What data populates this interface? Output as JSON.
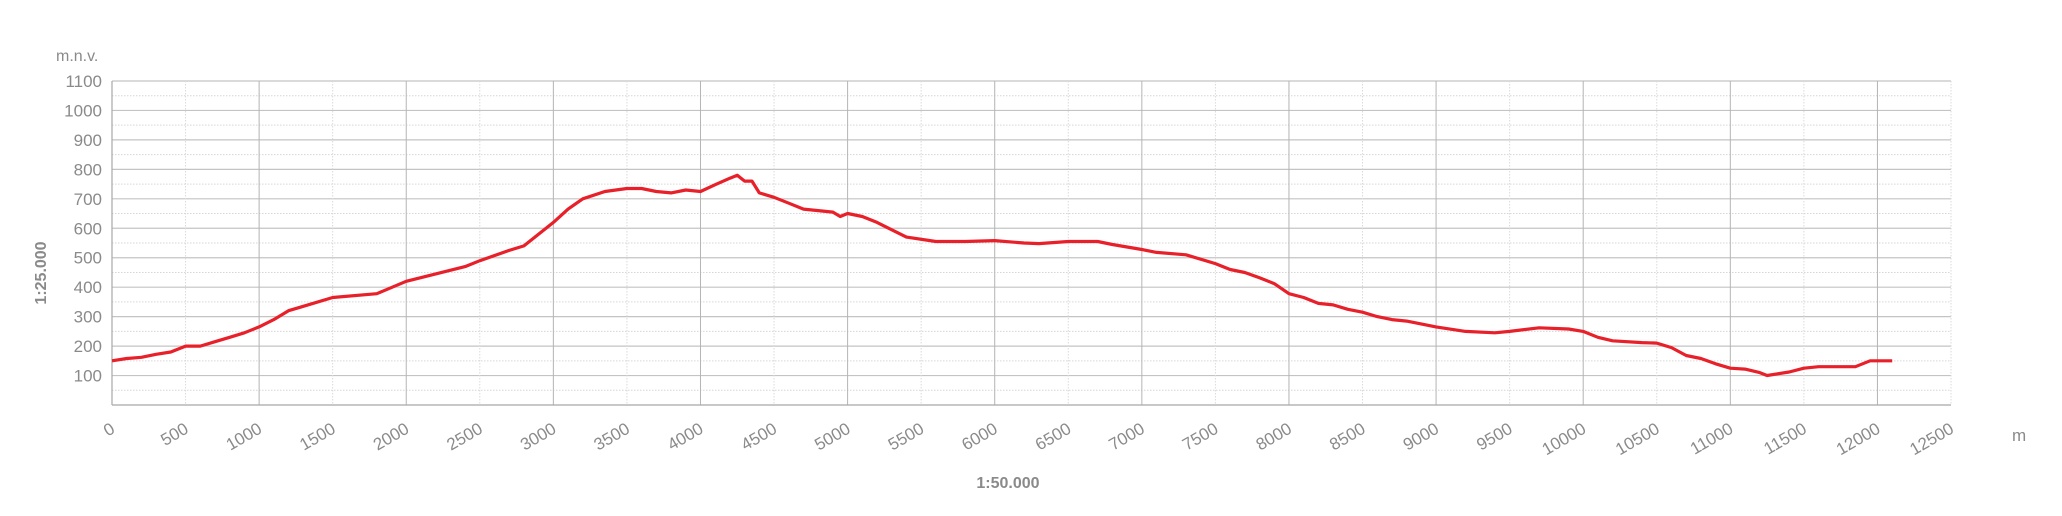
{
  "chart_data": {
    "type": "line",
    "title": "",
    "ylabel": "m.n.v.",
    "xlabel": "m",
    "vertical_scale_label": "1:25.000",
    "horizontal_scale_label": "1:50.000",
    "xlim": [
      0,
      12500
    ],
    "ylim": [
      0,
      1100
    ],
    "xticks": [
      "0",
      "500",
      "1000",
      "1500",
      "2000",
      "2500",
      "3000",
      "3500",
      "4000",
      "4500",
      "5000",
      "5500",
      "6000",
      "6500",
      "7000",
      "7500",
      "8000",
      "8500",
      "9000",
      "9500",
      "10000",
      "10500",
      "11000",
      "11500",
      "12000",
      "12500"
    ],
    "yticks": [
      "100",
      "200",
      "300",
      "400",
      "500",
      "600",
      "700",
      "800",
      "900",
      "1000",
      "1100"
    ],
    "grid": true,
    "line_color": "#e8202a",
    "series": [
      {
        "x": [
          0,
          100,
          200,
          300,
          400,
          500,
          600,
          700,
          800,
          900,
          1000,
          1100,
          1200,
          1300,
          1500,
          1800,
          2000,
          2200,
          2400,
          2500,
          2700,
          2800,
          3000,
          3100,
          3200,
          3350,
          3500,
          3600,
          3700,
          3800,
          3900,
          4000,
          4100,
          4200,
          4250,
          4300,
          4350,
          4400,
          4500,
          4600,
          4700,
          4800,
          4900,
          4950,
          5000,
          5100,
          5200,
          5400,
          5600,
          5800,
          6000,
          6200,
          6300,
          6500,
          6700,
          6800,
          7000,
          7100,
          7300,
          7500,
          7600,
          7700,
          7800,
          7900,
          8000,
          8100,
          8200,
          8300,
          8400,
          8500,
          8600,
          8700,
          8800,
          9000,
          9200,
          9400,
          9500,
          9700,
          9900,
          10000,
          10100,
          10200,
          10400,
          10500,
          10600,
          10700,
          10800,
          10900,
          11000,
          11100,
          11200,
          11250,
          11400,
          11500,
          11600,
          11850,
          11950,
          12100
        ],
        "y": [
          150,
          158,
          162,
          172,
          180,
          200,
          200,
          215,
          230,
          245,
          265,
          290,
          320,
          335,
          365,
          378,
          420,
          445,
          470,
          490,
          525,
          540,
          620,
          665,
          700,
          725,
          735,
          735,
          725,
          720,
          730,
          725,
          748,
          770,
          780,
          760,
          760,
          720,
          705,
          685,
          665,
          660,
          655,
          640,
          650,
          640,
          620,
          570,
          555,
          555,
          558,
          550,
          548,
          555,
          555,
          545,
          528,
          518,
          510,
          480,
          460,
          450,
          432,
          412,
          378,
          365,
          345,
          340,
          325,
          315,
          300,
          290,
          285,
          265,
          250,
          245,
          250,
          262,
          258,
          250,
          230,
          218,
          212,
          210,
          195,
          168,
          158,
          140,
          125,
          122,
          110,
          100,
          112,
          125,
          130,
          130,
          150,
          150
        ]
      }
    ]
  }
}
